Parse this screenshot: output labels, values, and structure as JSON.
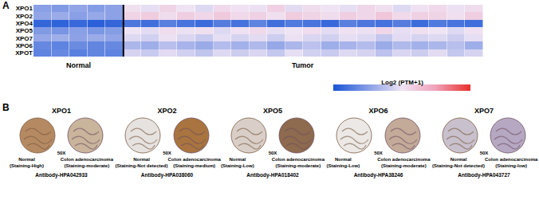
{
  "chart_data": {
    "type": "heatmap",
    "panel": "A",
    "rows": [
      "XPO1",
      "XPO2",
      "XPO4",
      "XPO5",
      "XPO7",
      "XPO6",
      "XPOT"
    ],
    "sample_groups": [
      "Normal",
      "Normal",
      "Normal",
      "Normal",
      "Normal",
      "Tumor",
      "Tumor",
      "Tumor",
      "Tumor",
      "Tumor",
      "Tumor",
      "Tumor",
      "Tumor",
      "Tumor",
      "Tumor",
      "Tumor",
      "Tumor",
      "Tumor",
      "Tumor",
      "Tumor",
      "Tumor",
      "Tumor",
      "Tumor",
      "Tumor",
      "Tumor"
    ],
    "cells": [
      [
        2.6,
        2.4,
        2.8,
        2.5,
        2.7,
        5.2,
        4.8,
        5.6,
        5.0,
        4.6,
        5.4,
        5.1,
        4.9,
        5.7,
        4.7,
        5.3,
        5.0,
        4.8,
        5.5,
        5.2,
        4.6,
        5.1,
        5.4,
        4.9,
        5.3
      ],
      [
        2.8,
        3.0,
        2.6,
        2.9,
        2.7,
        5.6,
        5.9,
        5.3,
        5.8,
        5.5,
        6.0,
        5.4,
        5.7,
        5.2,
        5.9,
        5.6,
        5.3,
        5.8,
        5.5,
        6.1,
        5.4,
        5.7,
        5.6,
        5.2,
        5.8
      ],
      [
        0.6,
        0.5,
        0.7,
        0.4,
        0.6,
        1.2,
        0.9,
        1.5,
        1.1,
        0.8,
        1.4,
        1.0,
        1.6,
        0.9,
        1.3,
        1.1,
        0.7,
        1.5,
        1.2,
        1.0,
        1.4,
        0.8,
        1.3,
        1.1,
        0.9
      ],
      [
        2.4,
        2.2,
        2.6,
        2.3,
        2.5,
        5.0,
        4.7,
        5.3,
        4.9,
        5.2,
        4.6,
        5.1,
        5.4,
        4.8,
        5.0,
        5.3,
        4.7,
        5.1,
        4.9,
        5.5,
        4.8,
        5.2,
        5.0,
        4.6,
        5.1
      ],
      [
        2.9,
        3.1,
        2.7,
        3.0,
        2.8,
        4.6,
        4.3,
        4.9,
        4.5,
        4.1,
        4.8,
        4.4,
        4.7,
        4.2,
        4.9,
        4.5,
        4.3,
        4.8,
        4.6,
        4.0,
        4.7,
        4.4,
        4.6,
        4.2,
        4.8
      ],
      [
        1.8,
        1.6,
        1.9,
        1.7,
        1.8,
        3.4,
        3.1,
        3.7,
        3.3,
        3.0,
        3.6,
        3.2,
        3.5,
        2.9,
        3.4,
        3.8,
        3.1,
        3.3,
        3.6,
        3.0,
        3.5,
        3.2,
        3.4,
        3.7,
        3.1
      ],
      [
        1.6,
        1.8,
        1.5,
        1.7,
        1.6,
        4.4,
        4.1,
        4.7,
        4.3,
        3.9,
        4.6,
        4.2,
        4.5,
        4.0,
        4.8,
        4.3,
        4.1,
        4.6,
        4.4,
        3.8,
        4.5,
        4.2,
        4.7,
        4.0,
        4.4
      ]
    ],
    "colorbar": {
      "title": "Log2 (PTM+1)",
      "zlim": [
        0,
        10
      ]
    },
    "tick_labels": "y"
  },
  "panel_b": {
    "label": "B",
    "items": [
      {
        "gene": "XPO1",
        "magnification": "50X",
        "normal": {
          "tissue": "Normal",
          "staining": "(Staining-High)"
        },
        "tumor": {
          "tissue": "Colon adenocarcinoma",
          "staining": "(Staining-moderate)"
        },
        "antibody": "Antibody-HPA042933"
      },
      {
        "gene": "XPO2",
        "magnification": "50X",
        "normal": {
          "tissue": "Normal",
          "staining": "(Staining-Not detected)"
        },
        "tumor": {
          "tissue": "Colon adenocarcinoma",
          "staining": "(Staining-medium)"
        },
        "antibody": "Antibody-HPA038060"
      },
      {
        "gene": "XPO5",
        "magnification": "50X",
        "normal": {
          "tissue": "Normal",
          "staining": "(Staining-Low)"
        },
        "tumor": {
          "tissue": "Colon adenocarcinoma",
          "staining": "(Staining-moderate)"
        },
        "antibody": "Antibody-HPA018402"
      },
      {
        "gene": "XPO6",
        "magnification": "50X",
        "normal": {
          "tissue": "Normal",
          "staining": "(Staining-Low)"
        },
        "tumor": {
          "tissue": "Colon adenocarcinoma",
          "staining": "(Staining-moderate)"
        },
        "antibody": "Antibody-HPA38246"
      },
      {
        "gene": "XPO7",
        "magnification": "50X",
        "normal": {
          "tissue": "Normal",
          "staining": "(Staining-Not detected)"
        },
        "tumor": {
          "tissue": "Colon adenocarcinoma",
          "staining": "(Staining-low)"
        },
        "antibody": "Antibody-HPA043727"
      }
    ]
  }
}
